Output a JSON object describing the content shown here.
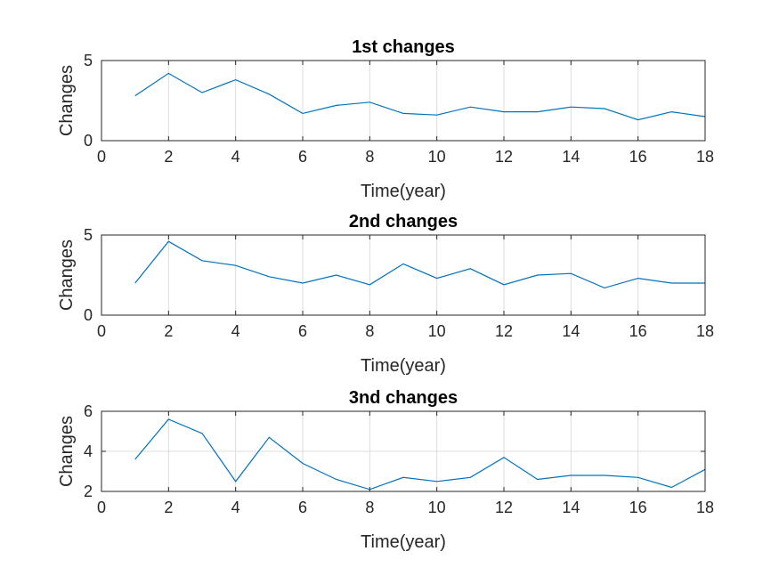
{
  "chart_data": [
    {
      "type": "line",
      "title": "1st changes",
      "xlabel": "Time(year)",
      "ylabel": "Changes",
      "xlim": [
        0,
        18
      ],
      "ylim": [
        0,
        5
      ],
      "xticks": [
        0,
        2,
        4,
        6,
        8,
        10,
        12,
        14,
        16,
        18
      ],
      "yticks": [
        0,
        5
      ],
      "grid": true,
      "line_color": "#0072bd",
      "x": [
        1,
        2,
        3,
        4,
        5,
        6,
        7,
        8,
        9,
        10,
        11,
        12,
        13,
        14,
        15,
        16,
        17,
        18
      ],
      "series": [
        {
          "values": [
            2.8,
            4.2,
            3.0,
            3.8,
            2.9,
            1.7,
            2.2,
            2.4,
            1.7,
            1.6,
            2.1,
            1.8,
            1.8,
            2.1,
            2.0,
            1.3,
            1.8,
            1.5
          ]
        }
      ]
    },
    {
      "type": "line",
      "title": "2nd changes",
      "xlabel": "Time(year)",
      "ylabel": "Changes",
      "xlim": [
        0,
        18
      ],
      "ylim": [
        0,
        5
      ],
      "xticks": [
        0,
        2,
        4,
        6,
        8,
        10,
        12,
        14,
        16,
        18
      ],
      "yticks": [
        0,
        5
      ],
      "grid": true,
      "line_color": "#0072bd",
      "x": [
        1,
        2,
        3,
        4,
        5,
        6,
        7,
        8,
        9,
        10,
        11,
        12,
        13,
        14,
        15,
        16,
        17,
        18
      ],
      "series": [
        {
          "values": [
            2.0,
            4.6,
            3.4,
            3.1,
            2.4,
            2.0,
            2.5,
            1.9,
            3.2,
            2.3,
            2.9,
            1.9,
            2.5,
            2.6,
            1.7,
            2.3,
            2.0,
            2.0
          ]
        }
      ]
    },
    {
      "type": "line",
      "title": "3nd changes",
      "xlabel": "Time(year)",
      "ylabel": "Changes",
      "xlim": [
        0,
        18
      ],
      "ylim": [
        2,
        6
      ],
      "xticks": [
        0,
        2,
        4,
        6,
        8,
        10,
        12,
        14,
        16,
        18
      ],
      "yticks": [
        2,
        4,
        6
      ],
      "grid": true,
      "line_color": "#0072bd",
      "x": [
        1,
        2,
        3,
        4,
        5,
        6,
        7,
        8,
        9,
        10,
        11,
        12,
        13,
        14,
        15,
        16,
        17,
        18
      ],
      "series": [
        {
          "values": [
            3.6,
            5.6,
            4.9,
            2.5,
            4.7,
            3.4,
            2.6,
            2.1,
            2.7,
            2.5,
            2.7,
            3.7,
            2.6,
            2.8,
            2.8,
            2.7,
            2.2,
            3.1
          ]
        }
      ]
    }
  ]
}
